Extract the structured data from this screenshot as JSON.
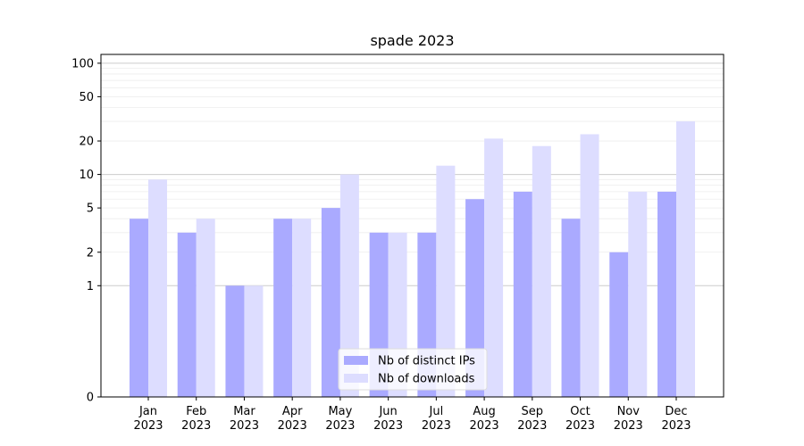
{
  "chart_data": {
    "type": "bar",
    "title": "spade 2023",
    "xlabel": "",
    "ylabel": "",
    "yscale": "symlog",
    "ylim": [
      0,
      120
    ],
    "yticks": [
      0,
      1,
      2,
      5,
      10,
      20,
      50,
      100
    ],
    "legend_position": "bottom-center",
    "categories": [
      {
        "month": "Jan",
        "year": "2023"
      },
      {
        "month": "Feb",
        "year": "2023"
      },
      {
        "month": "Mar",
        "year": "2023"
      },
      {
        "month": "Apr",
        "year": "2023"
      },
      {
        "month": "May",
        "year": "2023"
      },
      {
        "month": "Jun",
        "year": "2023"
      },
      {
        "month": "Jul",
        "year": "2023"
      },
      {
        "month": "Aug",
        "year": "2023"
      },
      {
        "month": "Sep",
        "year": "2023"
      },
      {
        "month": "Oct",
        "year": "2023"
      },
      {
        "month": "Nov",
        "year": "2023"
      },
      {
        "month": "Dec",
        "year": "2023"
      }
    ],
    "series": [
      {
        "name": "Nb of distinct IPs",
        "color": "#aaaaff",
        "values": [
          4,
          3,
          1,
          4,
          5,
          3,
          3,
          6,
          7,
          4,
          2,
          7
        ]
      },
      {
        "name": "Nb of downloads",
        "color": "#ddddff",
        "values": [
          9,
          4,
          1,
          4,
          10,
          3,
          12,
          21,
          18,
          23,
          7,
          30
        ]
      }
    ]
  }
}
